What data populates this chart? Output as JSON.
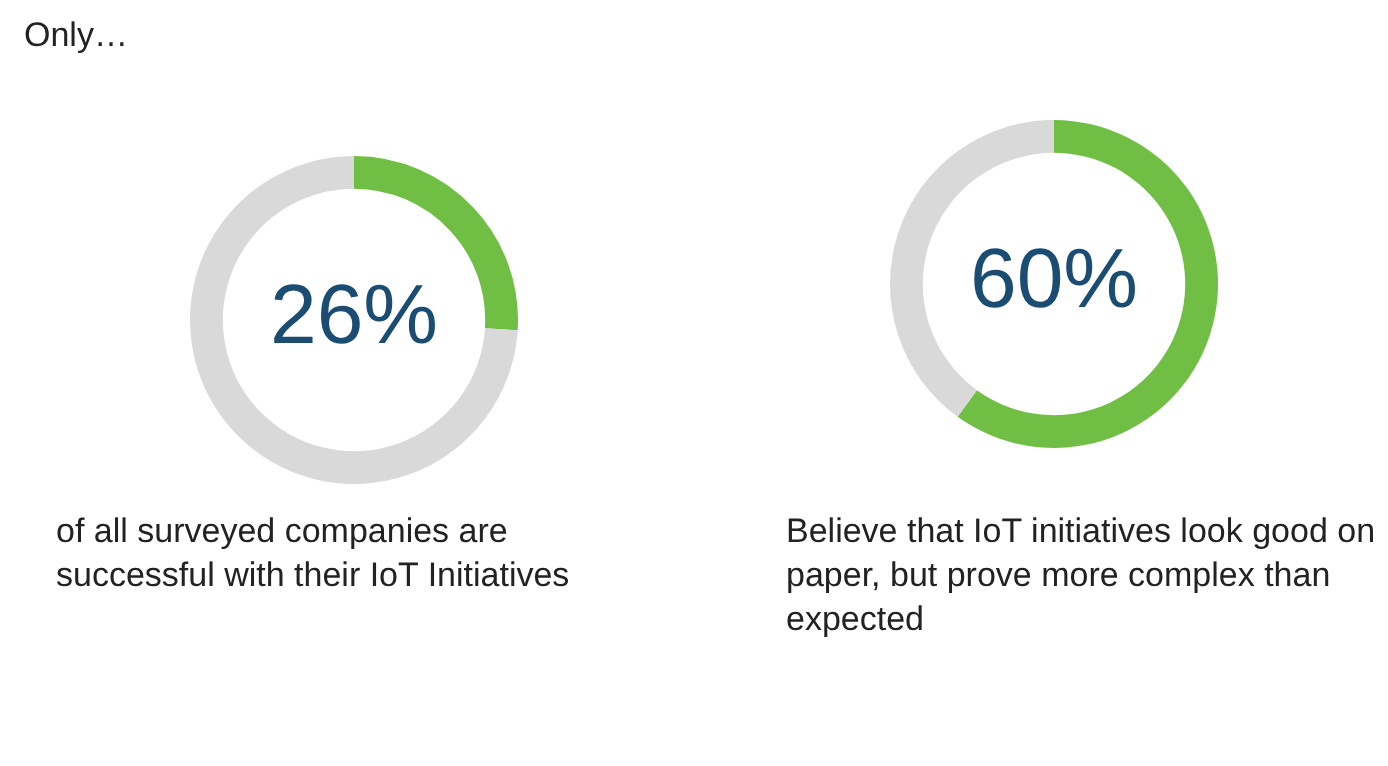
{
  "chart_data": [
    {
      "type": "donut",
      "title": "Only…",
      "categories": [
        null,
        null
      ],
      "values": [
        26,
        74
      ],
      "colors": [
        "#70bf44",
        "#d9d9d9"
      ],
      "value_labels": [
        "26%",
        null
      ],
      "legend": false,
      "annotations": [
        "of all surveyed companies are successful with their IoT Initiatives"
      ]
    },
    {
      "type": "donut",
      "categories": [
        null,
        null
      ],
      "values": [
        60,
        40
      ],
      "colors": [
        "#70bf44",
        "#d9d9d9"
      ],
      "value_labels": [
        "60%",
        null
      ],
      "legend": false,
      "annotations": [
        "Believe that IoT initiatives look good on paper, but prove more complex than expected"
      ]
    }
  ]
}
